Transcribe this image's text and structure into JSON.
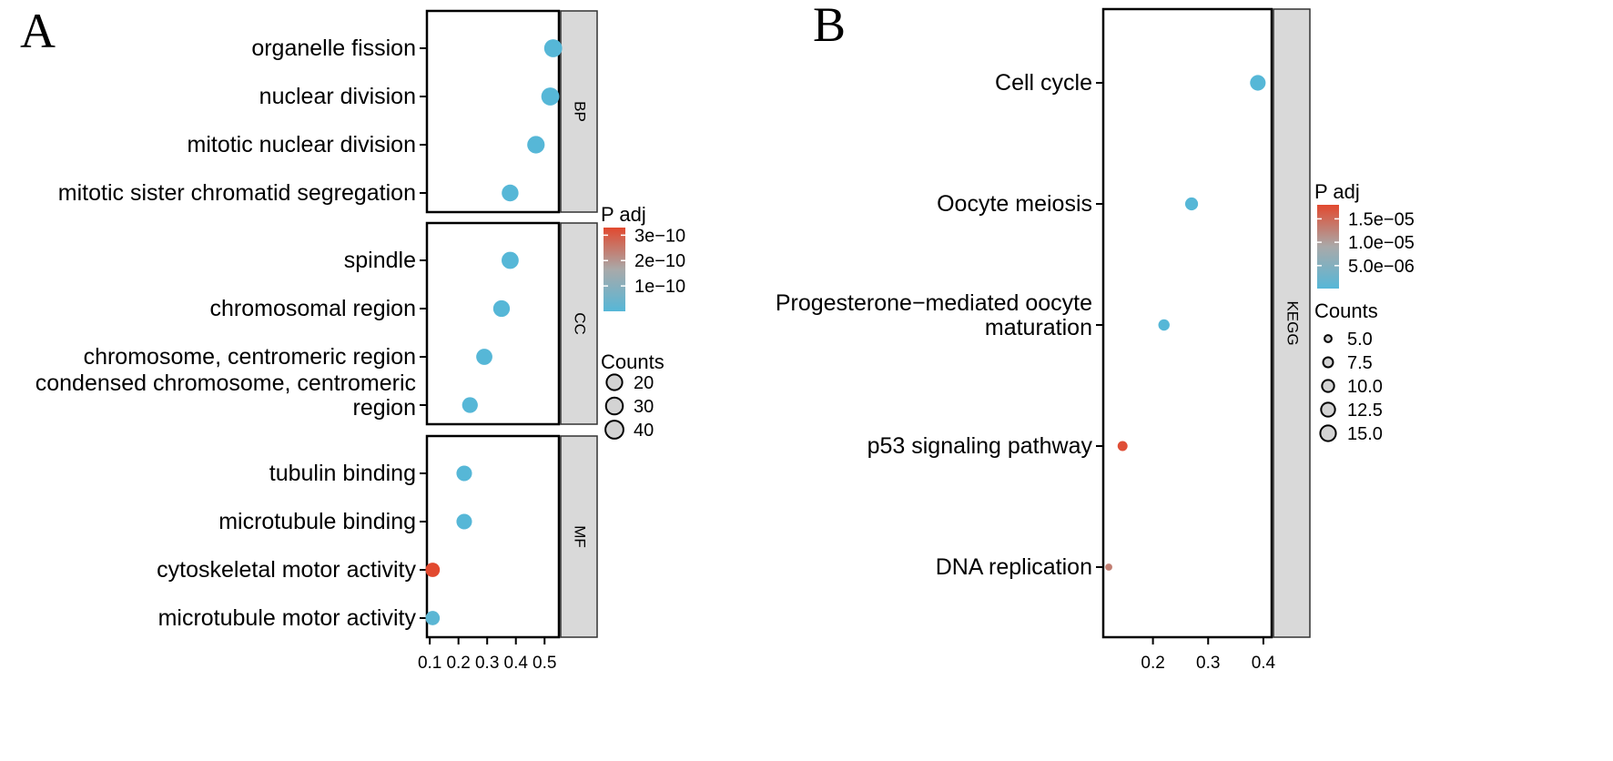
{
  "chart_data": [
    {
      "panel_label": "A",
      "type": "scatter",
      "xticks": [
        0.1,
        0.2,
        0.3,
        0.4,
        0.5
      ],
      "xlim": [
        0.09,
        0.55
      ],
      "legend": {
        "color_title": "P adj",
        "color_ticks": [
          "3e−10",
          "2e−10",
          "1e−10"
        ],
        "color_range": [
          0,
          3.3e-10
        ],
        "low_color": "#56b7d7",
        "mid_color": "#a9a9a9",
        "high_color": "#e2492f",
        "size_title": "Counts",
        "size_entries": [
          {
            "label": "20",
            "value": 20
          },
          {
            "label": "30",
            "value": 30
          },
          {
            "label": "40",
            "value": 40
          }
        ]
      },
      "facets": [
        {
          "strip": "BP",
          "terms": [
            {
              "label": [
                "organelle fission"
              ],
              "x": 0.53,
              "count": 40,
              "padj": 1e-13
            },
            {
              "label": [
                "nuclear division"
              ],
              "x": 0.52,
              "count": 40,
              "padj": 1e-13
            },
            {
              "label": [
                "mitotic nuclear division"
              ],
              "x": 0.47,
              "count": 35,
              "padj": 1e-13
            },
            {
              "label": [
                "mitotic sister chromatid segregation"
              ],
              "x": 0.38,
              "count": 29,
              "padj": 1e-13
            }
          ]
        },
        {
          "strip": "CC",
          "terms": [
            {
              "label": [
                "spindle"
              ],
              "x": 0.38,
              "count": 32,
              "padj": 1e-13
            },
            {
              "label": [
                "chromosomal region"
              ],
              "x": 0.35,
              "count": 28,
              "padj": 1e-13
            },
            {
              "label": [
                "chromosome, centromeric region"
              ],
              "x": 0.29,
              "count": 24,
              "padj": 1e-13
            },
            {
              "label": [
                "condensed chromosome, centromeric",
                "region"
              ],
              "x": 0.24,
              "count": 20,
              "padj": 1e-13
            }
          ]
        },
        {
          "strip": "MF",
          "terms": [
            {
              "label": [
                "tubulin binding"
              ],
              "x": 0.22,
              "count": 19,
              "padj": 1e-13
            },
            {
              "label": [
                "microtubule binding"
              ],
              "x": 0.22,
              "count": 19,
              "padj": 1e-13
            },
            {
              "label": [
                "cytoskeletal motor activity"
              ],
              "x": 0.11,
              "count": 10,
              "padj": 3.3e-10
            },
            {
              "label": [
                "microtubule motor activity"
              ],
              "x": 0.11,
              "count": 9,
              "padj": 1e-11
            }
          ]
        }
      ]
    },
    {
      "panel_label": "B",
      "type": "scatter",
      "xticks": [
        0.2,
        0.3,
        0.4
      ],
      "xlim": [
        0.11,
        0.415
      ],
      "legend": {
        "color_title": "P adj",
        "color_ticks": [
          "1.5e−05",
          "1.0e−05",
          "5.0e−06"
        ],
        "color_range": [
          1e-07,
          1.8e-05
        ],
        "low_color": "#56b7d7",
        "mid_color": "#a9a9a9",
        "high_color": "#e2492f",
        "size_title": "Counts",
        "size_entries": [
          {
            "label": "5.0",
            "value": 5.0
          },
          {
            "label": "7.5",
            "value": 7.5
          },
          {
            "label": "10.0",
            "value": 10.0
          },
          {
            "label": "12.5",
            "value": 12.5
          },
          {
            "label": "15.0",
            "value": 15.0
          }
        ]
      },
      "facets": [
        {
          "strip": "KEGG",
          "terms": [
            {
              "label": [
                "Cell cycle"
              ],
              "x": 0.39,
              "count": 15,
              "padj": 1e-07
            },
            {
              "label": [
                "Oocyte meiosis"
              ],
              "x": 0.27,
              "count": 11,
              "padj": 1e-07
            },
            {
              "label": [
                "Progesterone−mediated oocyte",
                "maturation"
              ],
              "x": 0.22,
              "count": 9,
              "padj": 1e-07
            },
            {
              "label": [
                "p53 signaling pathway"
              ],
              "x": 0.145,
              "count": 7.5,
              "padj": 1.75e-05
            },
            {
              "label": [
                "DNA replication"
              ],
              "x": 0.12,
              "count": 5,
              "padj": 1.3e-05
            }
          ]
        }
      ]
    }
  ]
}
